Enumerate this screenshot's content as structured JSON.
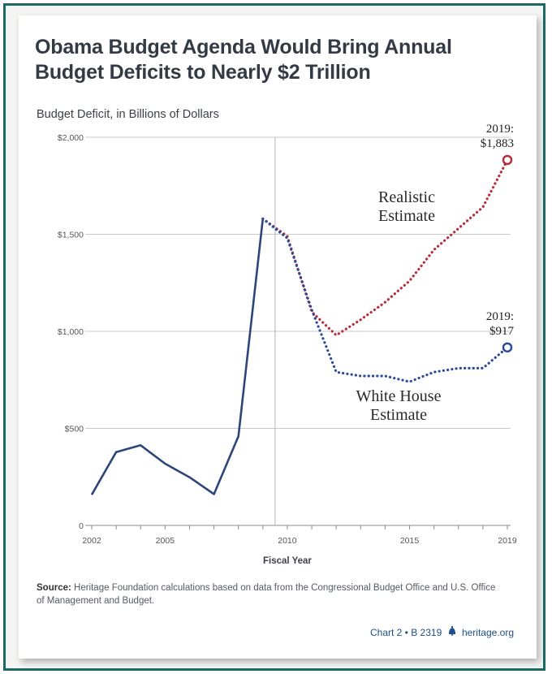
{
  "chart_data": {
    "type": "line",
    "title": "Obama Budget Agenda Would Bring Annual Budget Deficits to Nearly $2 Trillion",
    "subtitle": "Budget Deficit, in Billions of Dollars",
    "xlabel": "Fiscal Year",
    "ylabel": "",
    "xlim": [
      2002,
      2019
    ],
    "ylim": [
      0,
      2000
    ],
    "x_ticks": [
      {
        "value": 2002,
        "label": "2002"
      },
      {
        "value": 2005,
        "label": "2005"
      },
      {
        "value": 2010,
        "label": "2010"
      },
      {
        "value": 2015,
        "label": "2015"
      },
      {
        "value": 2019,
        "label": "2019"
      }
    ],
    "y_ticks": [
      {
        "value": 0,
        "label": "0"
      },
      {
        "value": 500,
        "label": "$500"
      },
      {
        "value": 1000,
        "label": "$1,000"
      },
      {
        "value": 1500,
        "label": "$1,500"
      },
      {
        "value": 2000,
        "label": "$2,000"
      }
    ],
    "grid": true,
    "series": [
      {
        "name": "",
        "style": "solid",
        "color": "#2d4578",
        "x": [
          2002,
          2003,
          2004,
          2005,
          2006,
          2007,
          2008,
          2009
        ],
        "values": [
          158,
          378,
          413,
          318,
          248,
          161,
          459,
          1580
        ]
      },
      {
        "name": "Realistic Estimate",
        "style": "dotted",
        "color": "#b72d3a",
        "x": [
          2009,
          2010,
          2011,
          2012,
          2013,
          2014,
          2015,
          2016,
          2017,
          2018,
          2019
        ],
        "values": [
          1580,
          1490,
          1100,
          980,
          1060,
          1150,
          1260,
          1420,
          1530,
          1640,
          1883
        ]
      },
      {
        "name": "White House Estimate",
        "style": "dotted",
        "color": "#2b4a9a",
        "x": [
          2009,
          2010,
          2011,
          2012,
          2013,
          2014,
          2015,
          2016,
          2017,
          2018,
          2019
        ],
        "values": [
          1580,
          1480,
          1110,
          790,
          770,
          770,
          740,
          790,
          810,
          810,
          917
        ]
      }
    ],
    "annotations": [
      {
        "lines": [
          "2019:",
          "$1,883"
        ],
        "x": 2019,
        "y": 1883,
        "color": "#b72d3a"
      },
      {
        "lines": [
          "2019:",
          "$917"
        ],
        "x": 2019,
        "y": 917,
        "color": "#2b4a9a"
      }
    ],
    "series_labels": [
      {
        "lines": [
          "Realistic",
          "Estimate"
        ],
        "series": 1
      },
      {
        "lines": [
          "White House",
          "Estimate"
        ],
        "series": 2
      }
    ],
    "vertical_marker_x": 2009.5
  },
  "source": {
    "label": "Source:",
    "text": "Heritage Foundation calculations based on data from the Congressional Budget Office and U.S. Office of Management and Budget."
  },
  "footer": {
    "chart_ref": "Chart 2 • B 2319",
    "site": "heritage.org"
  }
}
